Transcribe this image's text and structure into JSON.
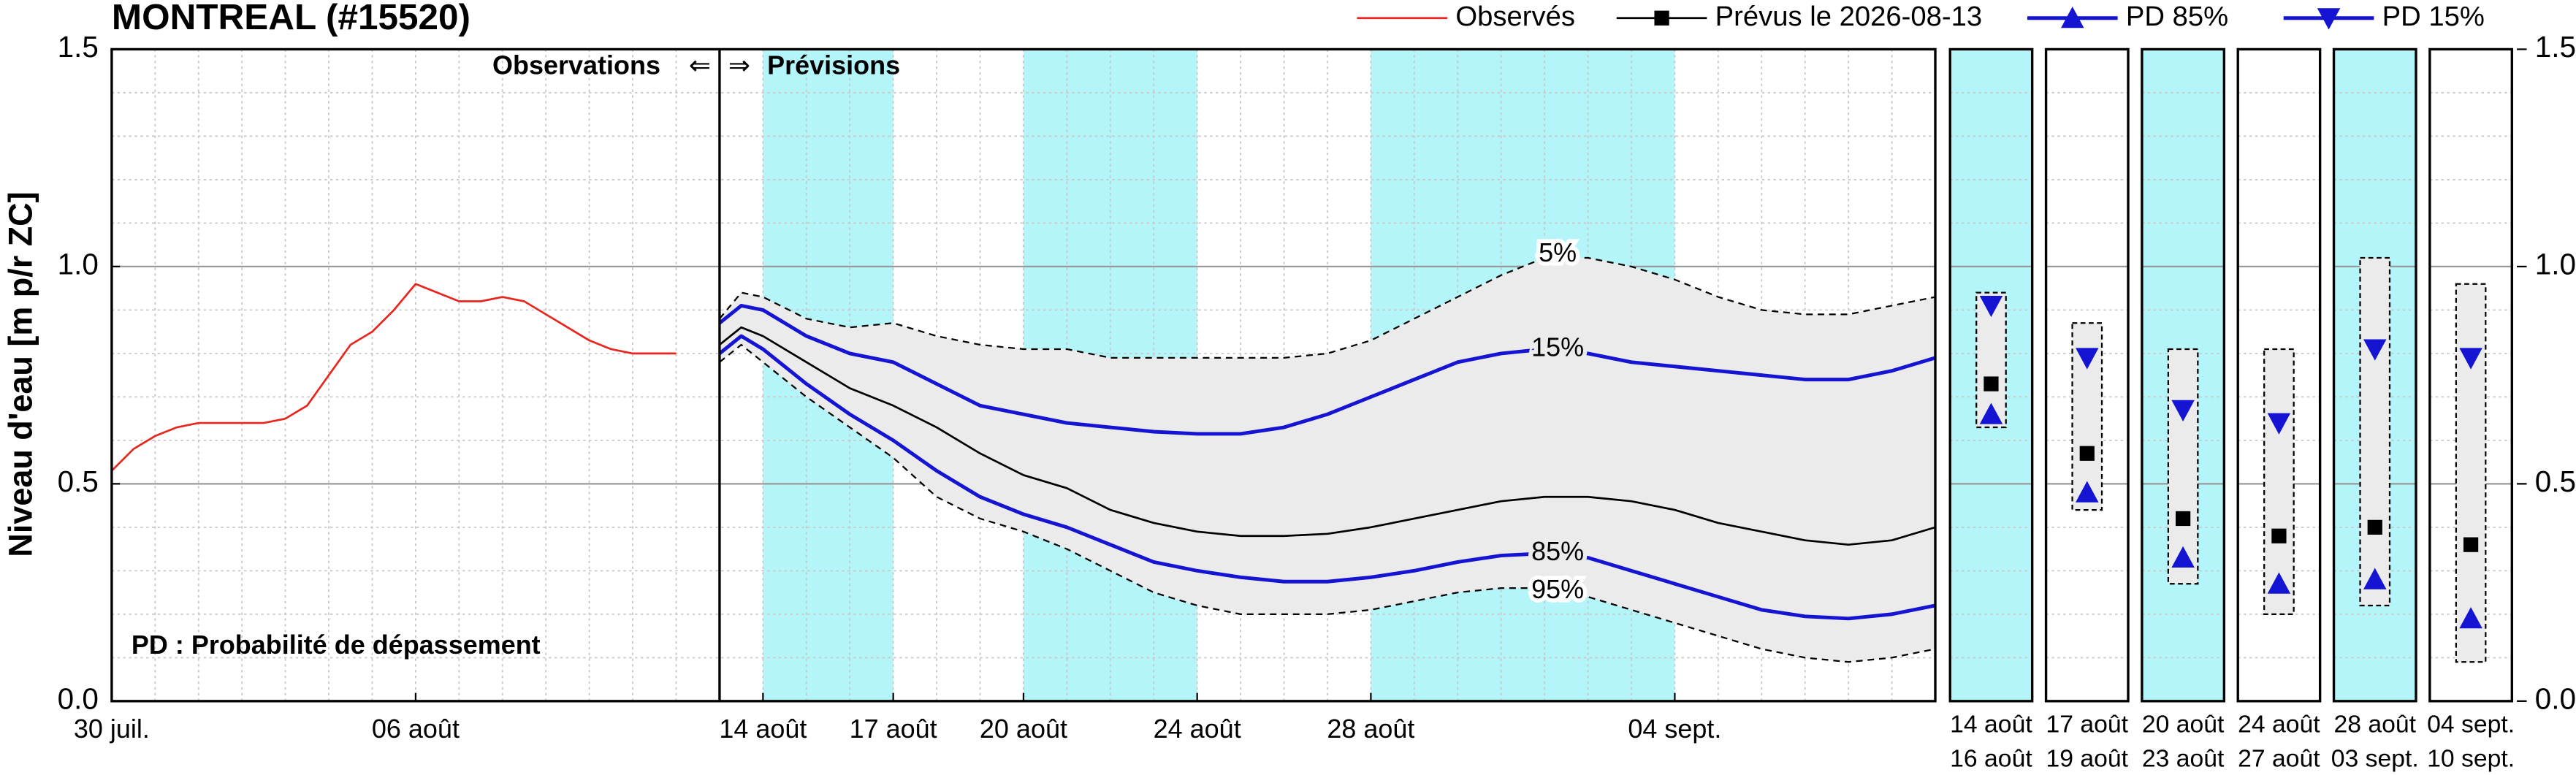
{
  "chart_data": {
    "type": "line",
    "title": "MONTREAL (#15520)",
    "ylabel": "Niveau d'eau [m p/r ZC]",
    "xlim": [
      0,
      42
    ],
    "xticks": [
      {
        "value": 0,
        "label": "30 juil."
      },
      {
        "value": 7,
        "label": "06 août"
      },
      {
        "value": 15,
        "label": "14 août"
      },
      {
        "value": 18,
        "label": "17 août"
      },
      {
        "value": 21,
        "label": "20 août"
      },
      {
        "value": 25,
        "label": "24 août"
      },
      {
        "value": 29,
        "label": "28 août"
      },
      {
        "value": 36,
        "label": "04 sept."
      }
    ],
    "ylim": [
      0,
      1.5
    ],
    "yticks": [
      {
        "value": 0,
        "label": "0.0"
      },
      {
        "value": 0.5,
        "label": "0.5"
      },
      {
        "value": 1,
        "label": "1.0"
      },
      {
        "value": 1.5,
        "label": "1.5"
      }
    ],
    "yminor_ticks": [
      0.1,
      0.2,
      0.3,
      0.4,
      0.6,
      0.7,
      0.8,
      0.9,
      1.1,
      1.2,
      1.3,
      1.4
    ],
    "grid": true,
    "forecast_start": 14,
    "shaded_periods": [
      [
        15,
        18
      ],
      [
        21,
        25
      ],
      [
        29,
        36
      ]
    ],
    "shade_color": "#b3f5f8",
    "band_color": "#ebebeb",
    "annotations": {
      "observations": "Observations",
      "left_arrow": "⇐",
      "right_arrow": "⇒",
      "forecasts": "Prévisions",
      "note": "PD : Probabilité de dépassement"
    },
    "series": [
      {
        "name": "Observés",
        "color": "#e8261e",
        "marker": "none",
        "width": 1.2,
        "x": [
          0,
          0.5,
          1,
          1.5,
          2,
          2.5,
          3,
          3.5,
          4,
          4.5,
          5,
          5.5,
          6,
          6.5,
          7,
          7.5,
          8,
          8.5,
          9,
          9.5,
          10,
          10.5,
          11,
          11.5,
          12,
          12.5,
          13
        ],
        "values": [
          0.53,
          0.58,
          0.61,
          0.63,
          0.64,
          0.64,
          0.64,
          0.64,
          0.65,
          0.68,
          0.75,
          0.82,
          0.85,
          0.9,
          0.96,
          0.94,
          0.92,
          0.92,
          0.93,
          0.92,
          0.89,
          0.86,
          0.83,
          0.81,
          0.8,
          0.8,
          0.8
        ]
      },
      {
        "name": "Prévus le 2026-08-13",
        "color": "#000000",
        "marker": "square",
        "width": 1.2,
        "x": [
          14,
          14.5,
          15,
          16,
          17,
          18,
          19,
          20,
          21,
          22,
          23,
          24,
          25,
          26,
          27,
          28,
          29,
          30,
          31,
          32,
          33,
          34,
          35,
          36,
          37,
          38,
          39,
          40,
          41,
          42
        ],
        "values": [
          0.82,
          0.86,
          0.84,
          0.78,
          0.72,
          0.68,
          0.63,
          0.57,
          0.52,
          0.49,
          0.44,
          0.41,
          0.39,
          0.38,
          0.38,
          0.385,
          0.4,
          0.42,
          0.44,
          0.46,
          0.47,
          0.47,
          0.46,
          0.44,
          0.41,
          0.39,
          0.37,
          0.36,
          0.37,
          0.4
        ]
      },
      {
        "name": "PD 85%",
        "label": "85%",
        "color": "#1414d2",
        "marker": "triangle-up",
        "width": 2.2,
        "x": [
          14,
          14.5,
          15,
          16,
          17,
          18,
          19,
          20,
          21,
          22,
          23,
          24,
          25,
          26,
          27,
          28,
          29,
          30,
          31,
          32,
          33,
          34,
          35,
          36,
          37,
          38,
          39,
          40,
          41,
          42
        ],
        "values": [
          0.8,
          0.84,
          0.81,
          0.73,
          0.66,
          0.6,
          0.53,
          0.47,
          0.43,
          0.4,
          0.36,
          0.32,
          0.3,
          0.285,
          0.275,
          0.275,
          0.285,
          0.3,
          0.32,
          0.335,
          0.34,
          0.33,
          0.3,
          0.27,
          0.24,
          0.21,
          0.195,
          0.19,
          0.2,
          0.22
        ]
      },
      {
        "name": "PD 15%",
        "label": "15%",
        "color": "#1414d2",
        "marker": "triangle-down",
        "width": 2.2,
        "x": [
          14,
          14.5,
          15,
          16,
          17,
          18,
          19,
          20,
          21,
          22,
          23,
          24,
          25,
          26,
          27,
          28,
          29,
          30,
          31,
          32,
          33,
          34,
          35,
          36,
          37,
          38,
          39,
          40,
          41,
          42
        ],
        "values": [
          0.87,
          0.91,
          0.9,
          0.84,
          0.8,
          0.78,
          0.73,
          0.68,
          0.66,
          0.64,
          0.63,
          0.62,
          0.615,
          0.615,
          0.63,
          0.66,
          0.7,
          0.74,
          0.78,
          0.8,
          0.81,
          0.8,
          0.78,
          0.77,
          0.76,
          0.75,
          0.74,
          0.74,
          0.76,
          0.79
        ]
      },
      {
        "label": "5%",
        "color": "#000000",
        "marker": "none",
        "width": 1,
        "dashed": true,
        "x": [
          14,
          14.5,
          15,
          16,
          17,
          18,
          19,
          20,
          21,
          22,
          23,
          24,
          25,
          26,
          27,
          28,
          29,
          30,
          31,
          32,
          33,
          34,
          35,
          36,
          37,
          38,
          39,
          40,
          41,
          42
        ],
        "values": [
          0.88,
          0.94,
          0.93,
          0.88,
          0.86,
          0.87,
          0.84,
          0.82,
          0.81,
          0.81,
          0.79,
          0.79,
          0.79,
          0.79,
          0.79,
          0.8,
          0.83,
          0.88,
          0.93,
          0.98,
          1.02,
          1.02,
          1.0,
          0.97,
          0.93,
          0.9,
          0.89,
          0.89,
          0.91,
          0.93
        ]
      },
      {
        "label": "95%",
        "color": "#000000",
        "marker": "none",
        "width": 1,
        "dashed": true,
        "x": [
          14,
          14.5,
          15,
          16,
          17,
          18,
          19,
          20,
          21,
          22,
          23,
          24,
          25,
          26,
          27,
          28,
          29,
          30,
          31,
          32,
          33,
          34,
          35,
          36,
          37,
          38,
          39,
          40,
          41,
          42
        ],
        "values": [
          0.78,
          0.82,
          0.78,
          0.7,
          0.63,
          0.56,
          0.47,
          0.42,
          0.39,
          0.35,
          0.3,
          0.25,
          0.22,
          0.2,
          0.2,
          0.2,
          0.21,
          0.23,
          0.25,
          0.26,
          0.26,
          0.24,
          0.21,
          0.18,
          0.15,
          0.12,
          0.1,
          0.09,
          0.1,
          0.12
        ]
      }
    ],
    "summaries": [
      {
        "start": "14 août",
        "end": "16 août",
        "shaded": true,
        "range": [
          0.63,
          0.94
        ],
        "forecast": 0.73,
        "pd85": 0.66,
        "pd15": 0.91
      },
      {
        "start": "17 août",
        "end": "19 août",
        "shaded": false,
        "range": [
          0.44,
          0.87
        ],
        "forecast": 0.57,
        "pd85": 0.48,
        "pd15": 0.79
      },
      {
        "start": "20 août",
        "end": "23 août",
        "shaded": true,
        "range": [
          0.27,
          0.81
        ],
        "forecast": 0.42,
        "pd85": 0.33,
        "pd15": 0.67
      },
      {
        "start": "24 août",
        "end": "27 août",
        "shaded": false,
        "range": [
          0.2,
          0.81
        ],
        "forecast": 0.38,
        "pd85": 0.27,
        "pd15": 0.64
      },
      {
        "start": "28 août",
        "end": "03 sept.",
        "shaded": true,
        "range": [
          0.22,
          1.02
        ],
        "forecast": 0.4,
        "pd85": 0.28,
        "pd15": 0.81
      },
      {
        "start": "04 sept.",
        "end": "10 sept.",
        "shaded": false,
        "range": [
          0.09,
          0.96
        ],
        "forecast": 0.36,
        "pd85": 0.19,
        "pd15": 0.79
      }
    ]
  }
}
